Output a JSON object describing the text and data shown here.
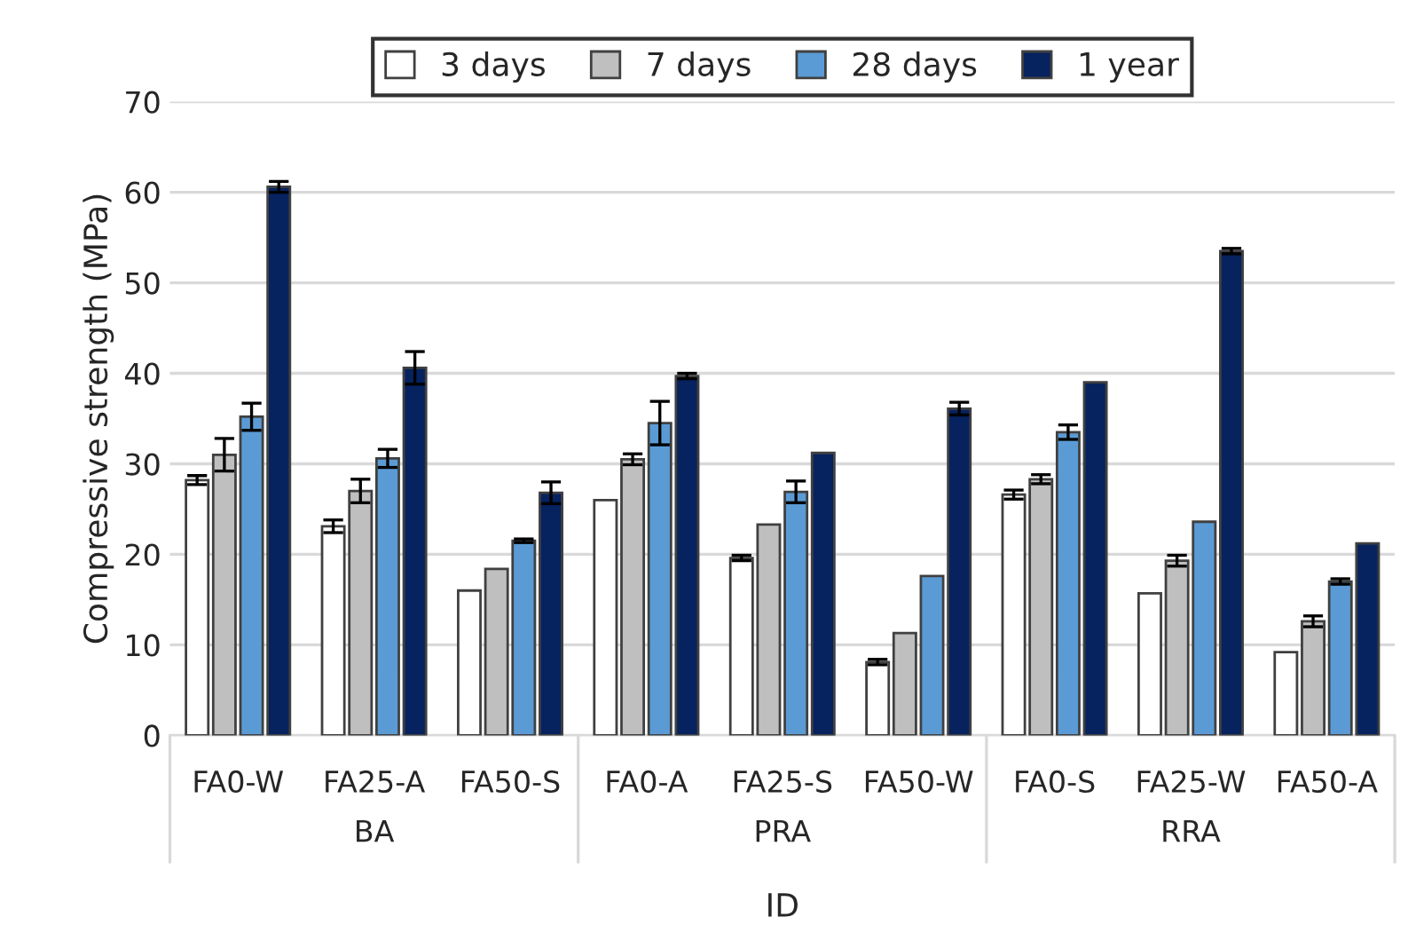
{
  "chart_data": {
    "type": "bar",
    "ylabel": "Compressive strength (MPa)",
    "xlabel": "ID",
    "categories": [
      "FA0-W",
      "FA25-A",
      "FA50-S",
      "FA0-A",
      "FA25-S",
      "FA50-W",
      "FA0-S",
      "FA25-W",
      "FA50-A"
    ],
    "series": [
      {
        "name": "3 days",
        "color": "#ffffff",
        "values": [
          28.2,
          23.1,
          16.0,
          26.0,
          19.6,
          8.1,
          26.6,
          15.7,
          9.2
        ],
        "errors": [
          0.5,
          0.7,
          null,
          null,
          0.3,
          0.3,
          0.5,
          null,
          null
        ]
      },
      {
        "name": "7 days",
        "color": "#bfbfbf",
        "values": [
          31.0,
          27.0,
          18.4,
          30.5,
          23.3,
          11.3,
          28.3,
          19.3,
          12.6
        ],
        "errors": [
          1.8,
          1.3,
          null,
          0.6,
          null,
          null,
          0.5,
          0.6,
          0.6
        ]
      },
      {
        "name": "28 days",
        "color": "#5b9bd5",
        "values": [
          35.2,
          30.6,
          21.5,
          34.5,
          26.9,
          17.6,
          33.5,
          23.6,
          17.0
        ],
        "errors": [
          1.5,
          1.0,
          0.2,
          2.4,
          1.2,
          null,
          0.8,
          null,
          0.3
        ]
      },
      {
        "name": "1 year",
        "color": "#06225f",
        "values": [
          60.6,
          40.6,
          26.8,
          39.7,
          31.2,
          36.1,
          39.0,
          53.5,
          21.2
        ],
        "errors": [
          0.6,
          1.8,
          1.2,
          0.3,
          null,
          0.7,
          null,
          0.3,
          null
        ]
      }
    ],
    "annotations": [
      "BA",
      "PRA",
      "RRA"
    ],
    "ylim": [
      0,
      70
    ],
    "yticks": [
      0,
      10,
      20,
      30,
      40,
      50,
      60,
      70
    ],
    "grid": "y",
    "legend": "top"
  }
}
